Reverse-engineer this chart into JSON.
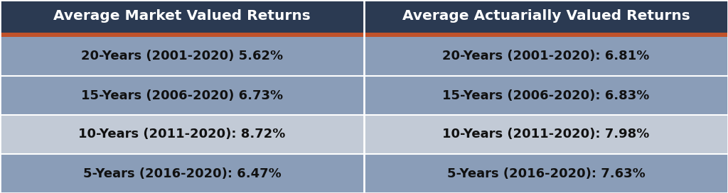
{
  "header_left": "Average Market Valued Returns",
  "header_right": "Average Actuarially Valued Returns",
  "header_bg": "#2B3A52",
  "header_text_color": "#FFFFFF",
  "accent_color": "#C0522A",
  "row_colors": [
    "#8A9DB8",
    "#8A9DB8",
    "#C2CAD6",
    "#8A9DB8"
  ],
  "divider_color": "#FFFFFF",
  "cell_text_color": "#111111",
  "left_cells": [
    "20-Years (2001-2020) 5.62%",
    "15-Years (2006-2020) 6.73%",
    "10-Years (2011-2020): 8.72%",
    "5-Years (2016-2020): 6.47%"
  ],
  "right_cells": [
    "20-Years (2001-2020): 6.81%",
    "15-Years (2006-2020): 6.83%",
    "10-Years (2011-2020): 7.98%",
    "5-Years (2016-2020): 7.63%"
  ],
  "figsize": [
    10.24,
    2.72
  ],
  "dpi": 100
}
